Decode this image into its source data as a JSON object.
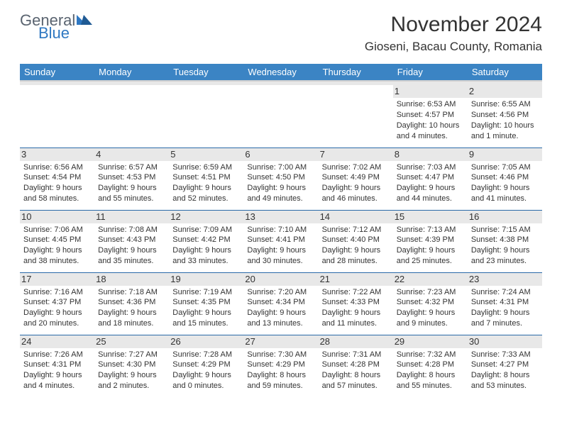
{
  "logo": {
    "general": "General",
    "blue": "Blue",
    "tri_color": "#2f78c2"
  },
  "title": "November 2024",
  "location": "Gioseni, Bacau County, Romania",
  "day_headers": [
    "Sunday",
    "Monday",
    "Tuesday",
    "Wednesday",
    "Thursday",
    "Friday",
    "Saturday"
  ],
  "colors": {
    "header_bg": "#3b84c4",
    "header_text": "#ffffff",
    "row_divider": "#2a6aa8",
    "daynum_bg": "#e8e8e8",
    "text": "#333333",
    "logo_gray": "#5a6470",
    "logo_blue": "#2f78c2"
  },
  "weeks": [
    [
      null,
      null,
      null,
      null,
      null,
      {
        "n": "1",
        "sr": "6:53 AM",
        "ss": "4:57 PM",
        "dl": "10 hours and 4 minutes."
      },
      {
        "n": "2",
        "sr": "6:55 AM",
        "ss": "4:56 PM",
        "dl": "10 hours and 1 minute."
      }
    ],
    [
      {
        "n": "3",
        "sr": "6:56 AM",
        "ss": "4:54 PM",
        "dl": "9 hours and 58 minutes."
      },
      {
        "n": "4",
        "sr": "6:57 AM",
        "ss": "4:53 PM",
        "dl": "9 hours and 55 minutes."
      },
      {
        "n": "5",
        "sr": "6:59 AM",
        "ss": "4:51 PM",
        "dl": "9 hours and 52 minutes."
      },
      {
        "n": "6",
        "sr": "7:00 AM",
        "ss": "4:50 PM",
        "dl": "9 hours and 49 minutes."
      },
      {
        "n": "7",
        "sr": "7:02 AM",
        "ss": "4:49 PM",
        "dl": "9 hours and 46 minutes."
      },
      {
        "n": "8",
        "sr": "7:03 AM",
        "ss": "4:47 PM",
        "dl": "9 hours and 44 minutes."
      },
      {
        "n": "9",
        "sr": "7:05 AM",
        "ss": "4:46 PM",
        "dl": "9 hours and 41 minutes."
      }
    ],
    [
      {
        "n": "10",
        "sr": "7:06 AM",
        "ss": "4:45 PM",
        "dl": "9 hours and 38 minutes."
      },
      {
        "n": "11",
        "sr": "7:08 AM",
        "ss": "4:43 PM",
        "dl": "9 hours and 35 minutes."
      },
      {
        "n": "12",
        "sr": "7:09 AM",
        "ss": "4:42 PM",
        "dl": "9 hours and 33 minutes."
      },
      {
        "n": "13",
        "sr": "7:10 AM",
        "ss": "4:41 PM",
        "dl": "9 hours and 30 minutes."
      },
      {
        "n": "14",
        "sr": "7:12 AM",
        "ss": "4:40 PM",
        "dl": "9 hours and 28 minutes."
      },
      {
        "n": "15",
        "sr": "7:13 AM",
        "ss": "4:39 PM",
        "dl": "9 hours and 25 minutes."
      },
      {
        "n": "16",
        "sr": "7:15 AM",
        "ss": "4:38 PM",
        "dl": "9 hours and 23 minutes."
      }
    ],
    [
      {
        "n": "17",
        "sr": "7:16 AM",
        "ss": "4:37 PM",
        "dl": "9 hours and 20 minutes."
      },
      {
        "n": "18",
        "sr": "7:18 AM",
        "ss": "4:36 PM",
        "dl": "9 hours and 18 minutes."
      },
      {
        "n": "19",
        "sr": "7:19 AM",
        "ss": "4:35 PM",
        "dl": "9 hours and 15 minutes."
      },
      {
        "n": "20",
        "sr": "7:20 AM",
        "ss": "4:34 PM",
        "dl": "9 hours and 13 minutes."
      },
      {
        "n": "21",
        "sr": "7:22 AM",
        "ss": "4:33 PM",
        "dl": "9 hours and 11 minutes."
      },
      {
        "n": "22",
        "sr": "7:23 AM",
        "ss": "4:32 PM",
        "dl": "9 hours and 9 minutes."
      },
      {
        "n": "23",
        "sr": "7:24 AM",
        "ss": "4:31 PM",
        "dl": "9 hours and 7 minutes."
      }
    ],
    [
      {
        "n": "24",
        "sr": "7:26 AM",
        "ss": "4:31 PM",
        "dl": "9 hours and 4 minutes."
      },
      {
        "n": "25",
        "sr": "7:27 AM",
        "ss": "4:30 PM",
        "dl": "9 hours and 2 minutes."
      },
      {
        "n": "26",
        "sr": "7:28 AM",
        "ss": "4:29 PM",
        "dl": "9 hours and 0 minutes."
      },
      {
        "n": "27",
        "sr": "7:30 AM",
        "ss": "4:29 PM",
        "dl": "8 hours and 59 minutes."
      },
      {
        "n": "28",
        "sr": "7:31 AM",
        "ss": "4:28 PM",
        "dl": "8 hours and 57 minutes."
      },
      {
        "n": "29",
        "sr": "7:32 AM",
        "ss": "4:28 PM",
        "dl": "8 hours and 55 minutes."
      },
      {
        "n": "30",
        "sr": "7:33 AM",
        "ss": "4:27 PM",
        "dl": "8 hours and 53 minutes."
      }
    ]
  ],
  "labels": {
    "sunrise": "Sunrise: ",
    "sunset": "Sunset: ",
    "daylight": "Daylight: "
  }
}
